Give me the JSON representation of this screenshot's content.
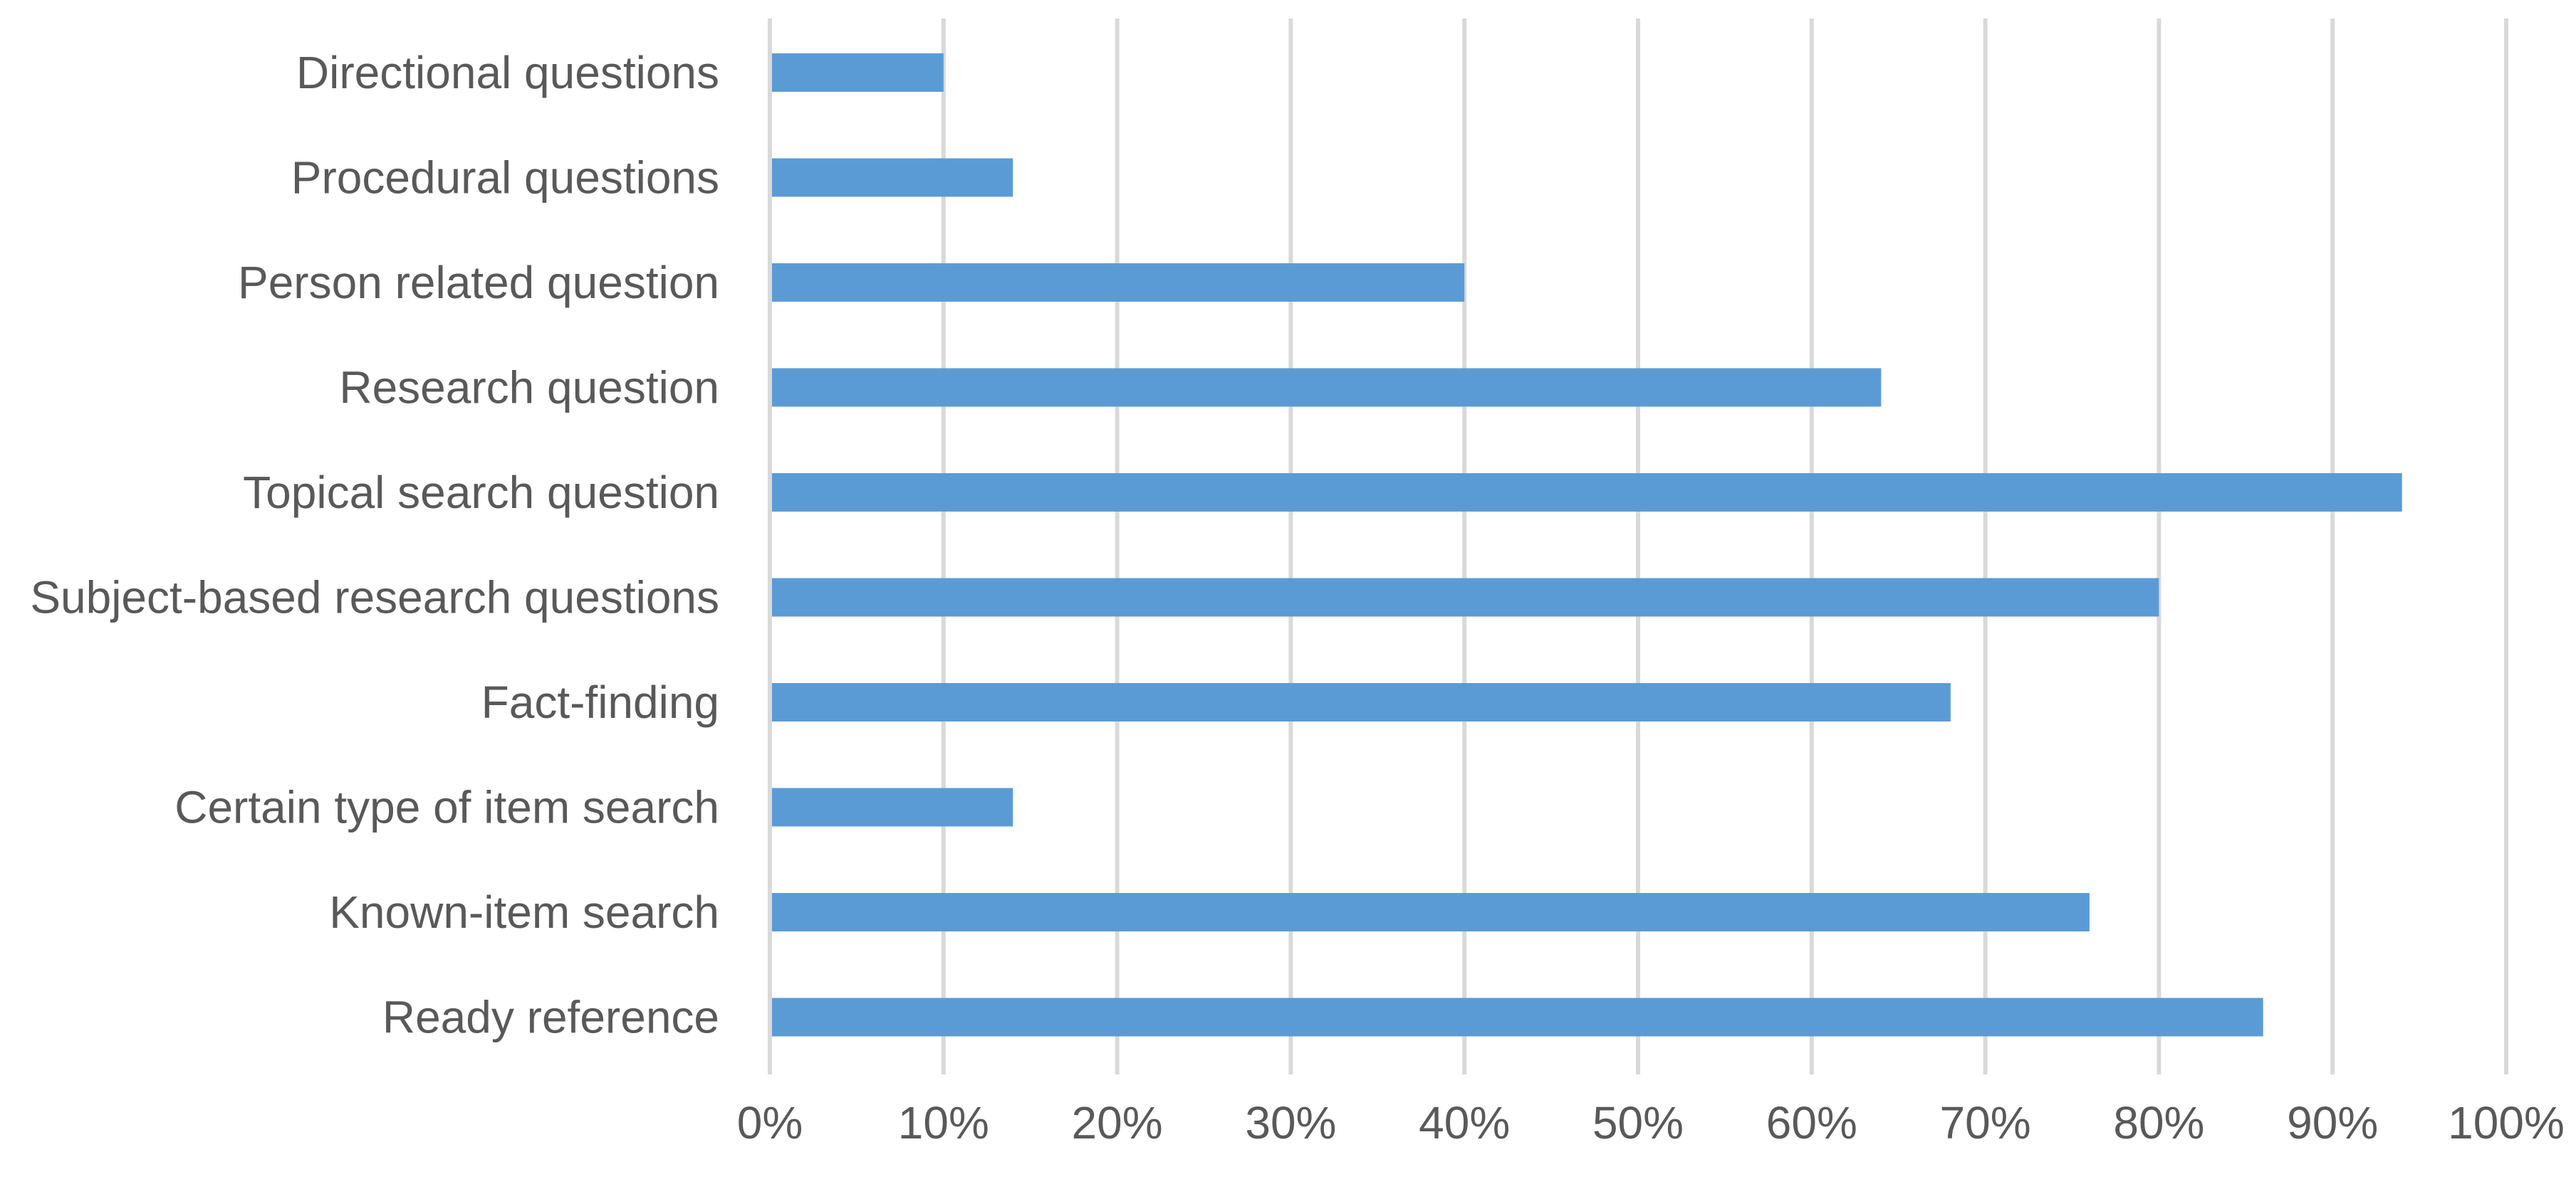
{
  "chart_data": {
    "type": "bar",
    "orientation": "horizontal",
    "categories": [
      "Directional questions",
      "Procedural questions",
      "Person related question",
      "Research question",
      "Topical search question",
      "Subject-based research questions",
      "Fact-finding",
      "Certain type of item search",
      "Known-item search",
      "Ready reference"
    ],
    "values": [
      10,
      14,
      40,
      64,
      94,
      80,
      68,
      14,
      76,
      86
    ],
    "value_unit": "%",
    "xlim": [
      0,
      100
    ],
    "xticks": [
      0,
      10,
      20,
      30,
      40,
      50,
      60,
      70,
      80,
      90,
      100
    ],
    "xtick_labels": [
      "0%",
      "10%",
      "20%",
      "30%",
      "40%",
      "50%",
      "60%",
      "70%",
      "80%",
      "90%",
      "100%"
    ],
    "title": "",
    "xlabel": "",
    "ylabel": "",
    "grid": "vertical",
    "legend": "none",
    "bar_color": "#5b9bd5",
    "grid_color": "#d9d9d9",
    "label_color": "#595959"
  }
}
